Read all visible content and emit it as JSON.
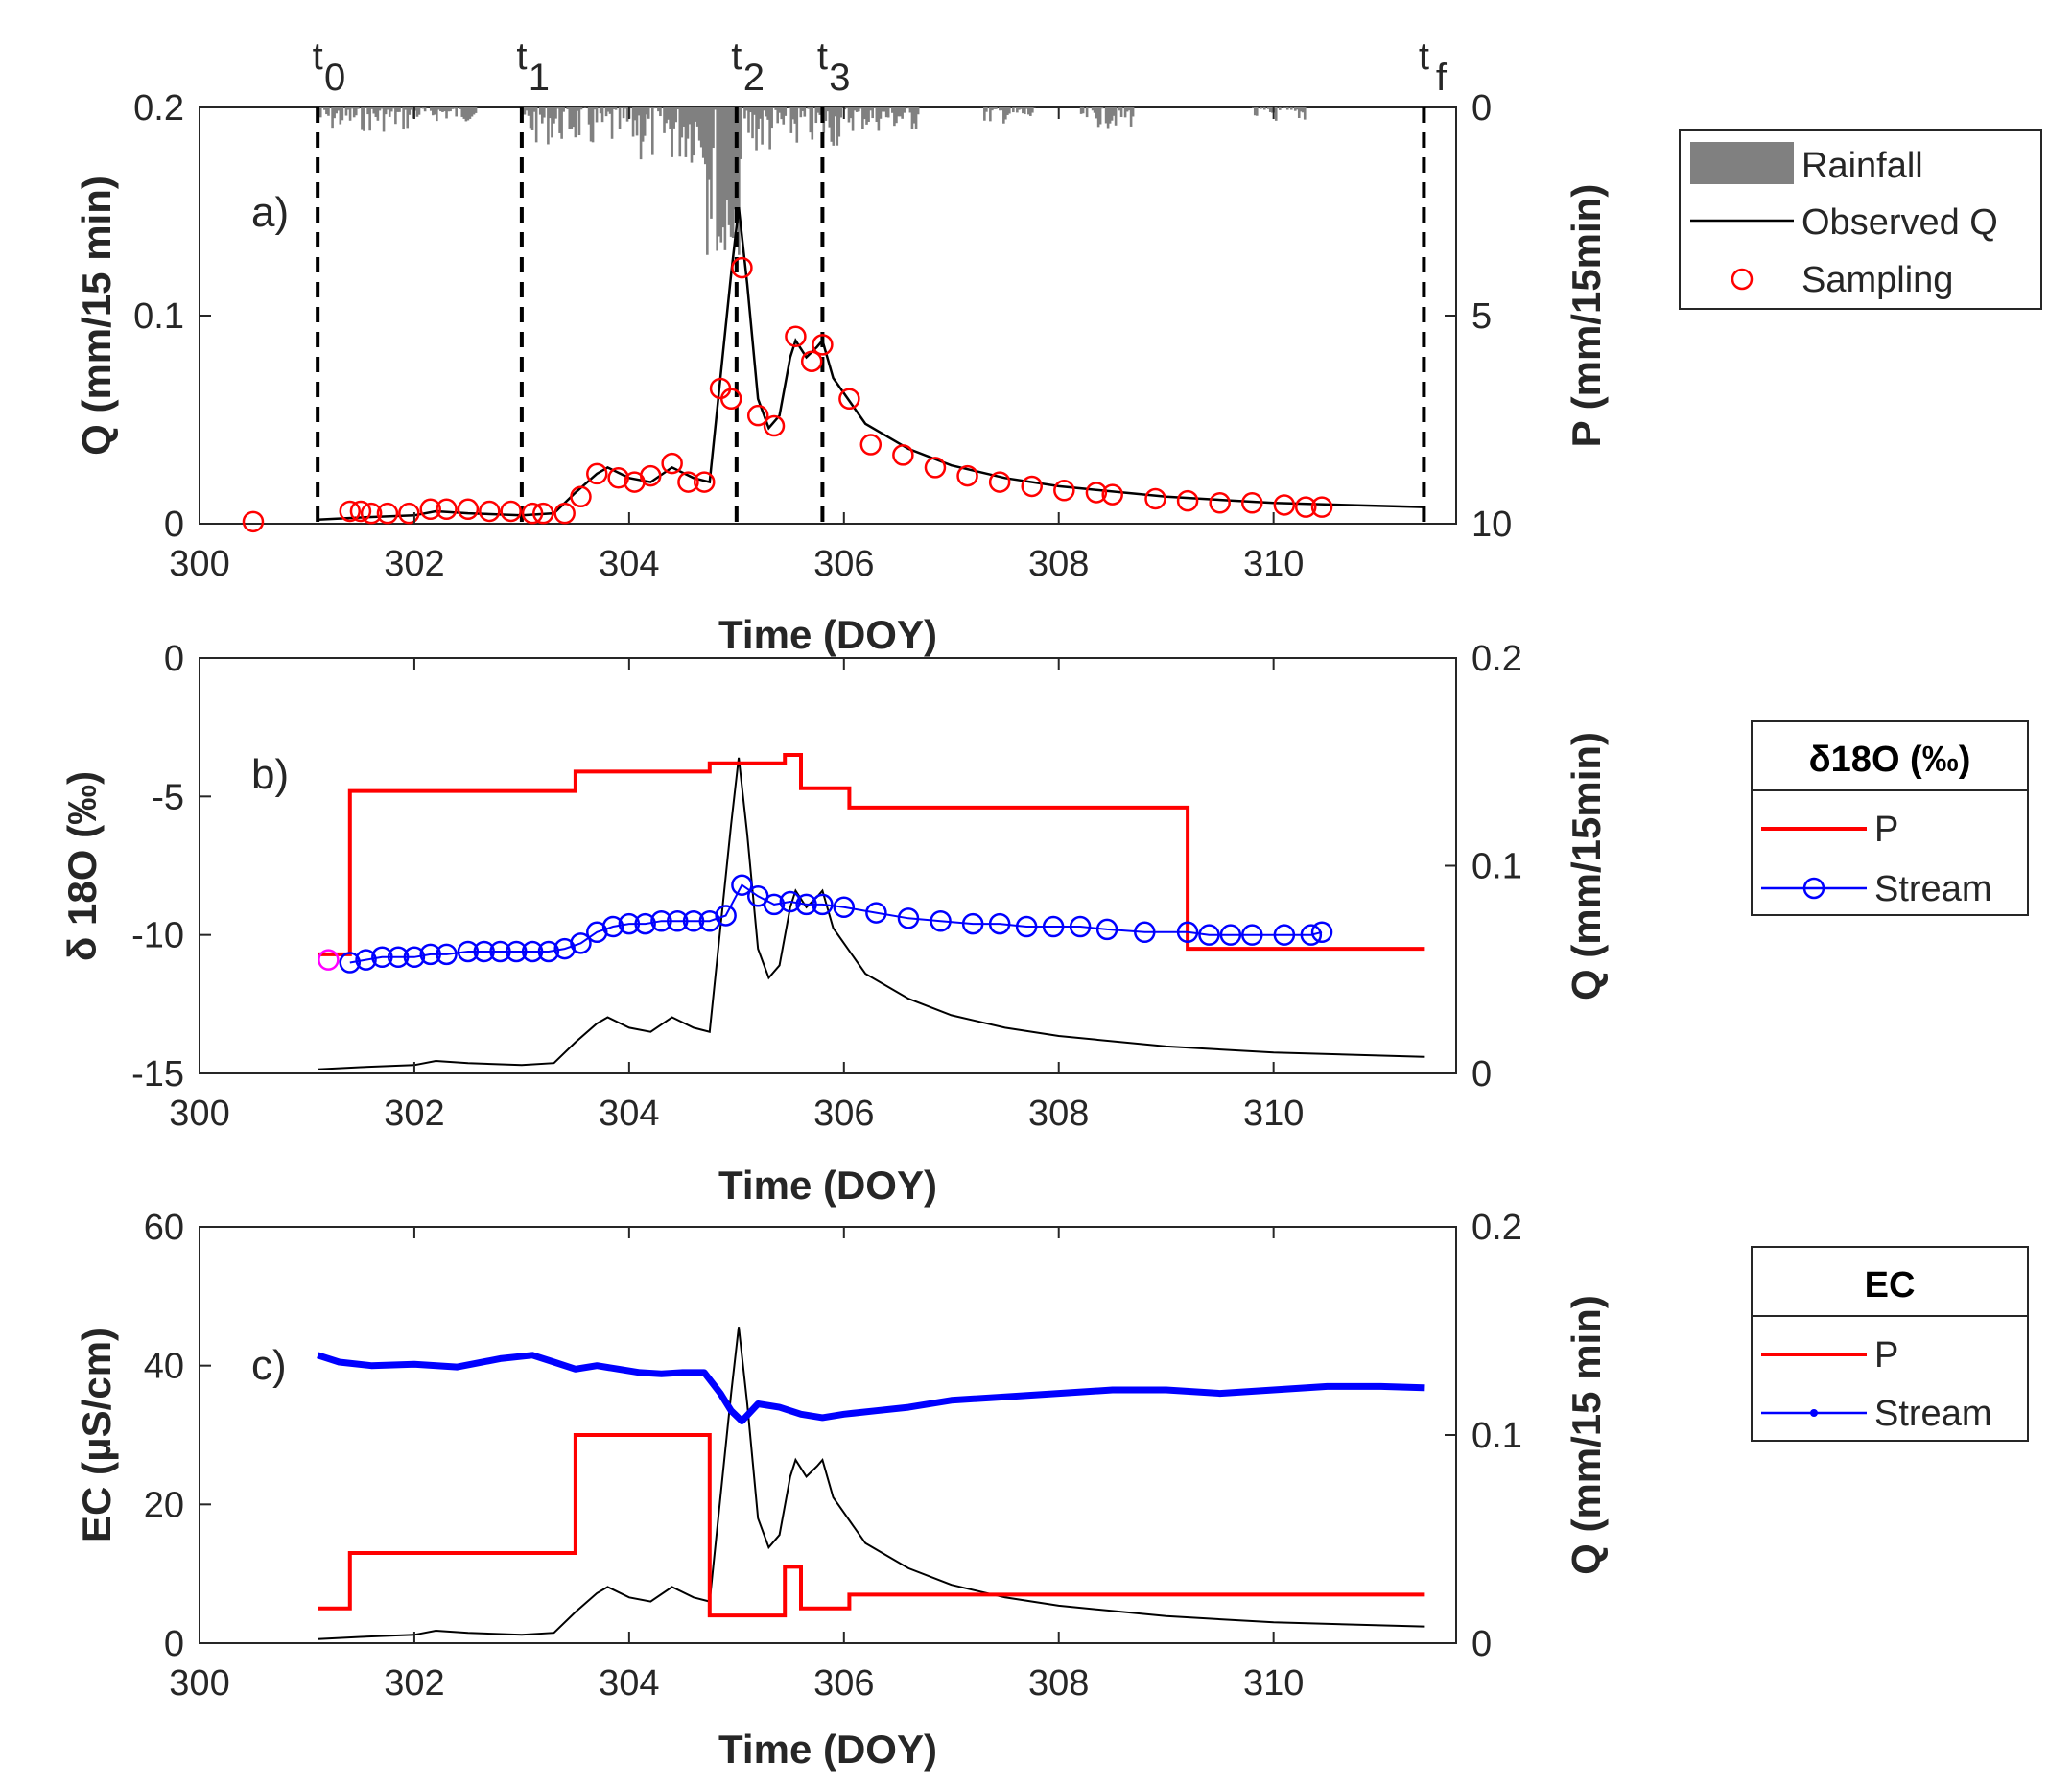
{
  "colors": {
    "rain": "#808080",
    "discharge": "#000000",
    "sampling": "#ff0000",
    "precip_line": "#ff0000",
    "stream_iso": "#0000ff",
    "stream_ec": "#0000ff",
    "first_sample": "#ff00ff"
  },
  "chart_data": [
    {
      "panel": "a)",
      "type": "line",
      "xlabel": "Time (DOY)",
      "ylabel": "Q (mm/15 min)",
      "ylabel_right": "P (mm/15min)",
      "xlim": [
        300,
        311.7
      ],
      "ylim": [
        0,
        0.2
      ],
      "ylim_right": [
        0,
        10
      ],
      "right_axis_reversed": true,
      "xticks": [
        "300",
        "302",
        "304",
        "306",
        "308",
        "310"
      ],
      "yticks": [
        "0",
        "0.1",
        "0.2"
      ],
      "yticks_right": [
        "0",
        "5",
        "10"
      ],
      "time_markers": [
        {
          "label": "t",
          "sub": "0",
          "x": 301.1
        },
        {
          "label": "t",
          "sub": "1",
          "x": 303.0
        },
        {
          "label": "t",
          "sub": "2",
          "x": 305.0
        },
        {
          "label": "t",
          "sub": "3",
          "x": 305.8
        },
        {
          "label": "t",
          "sub": "f",
          "x": 311.4
        }
      ],
      "legend": [
        {
          "label": "Rainfall",
          "kind": "patch"
        },
        {
          "label": "Observed Q",
          "kind": "line"
        },
        {
          "label": "Sampling",
          "kind": "marker"
        }
      ],
      "legend_location": "outside-right",
      "series": [
        {
          "name": "Observed Q",
          "x": [
            301.1,
            301.5,
            302.0,
            302.2,
            302.5,
            303.0,
            303.3,
            303.5,
            303.7,
            303.8,
            304.0,
            304.2,
            304.4,
            304.6,
            304.75,
            304.85,
            304.95,
            305.02,
            305.1,
            305.2,
            305.3,
            305.4,
            305.5,
            305.55,
            305.65,
            305.75,
            305.8,
            305.9,
            306.2,
            306.6,
            307.0,
            307.5,
            308.0,
            309.0,
            310.0,
            311.4
          ],
          "y": [
            0.002,
            0.003,
            0.004,
            0.006,
            0.005,
            0.004,
            0.005,
            0.015,
            0.024,
            0.027,
            0.022,
            0.02,
            0.027,
            0.022,
            0.02,
            0.07,
            0.12,
            0.152,
            0.115,
            0.06,
            0.046,
            0.052,
            0.08,
            0.088,
            0.08,
            0.085,
            0.088,
            0.07,
            0.048,
            0.036,
            0.028,
            0.022,
            0.018,
            0.013,
            0.01,
            0.008
          ]
        },
        {
          "name": "Sampling",
          "x": [
            300.5,
            301.4,
            301.5,
            301.6,
            301.75,
            301.95,
            302.15,
            302.3,
            302.5,
            302.7,
            302.9,
            303.1,
            303.2,
            303.4,
            303.55,
            303.7,
            303.9,
            304.05,
            304.2,
            304.4,
            304.55,
            304.7,
            304.85,
            304.95,
            305.05,
            305.2,
            305.35,
            305.55,
            305.7,
            305.8,
            306.05,
            306.25,
            306.55,
            306.85,
            307.15,
            307.45,
            307.75,
            308.05,
            308.35,
            308.5,
            308.9,
            309.2,
            309.5,
            309.8,
            310.1,
            310.3,
            310.45
          ],
          "y": [
            0.001,
            0.006,
            0.006,
            0.005,
            0.005,
            0.005,
            0.007,
            0.007,
            0.007,
            0.006,
            0.006,
            0.005,
            0.005,
            0.005,
            0.013,
            0.024,
            0.022,
            0.02,
            0.023,
            0.029,
            0.02,
            0.02,
            0.065,
            0.06,
            0.123,
            0.052,
            0.047,
            0.09,
            0.078,
            0.086,
            0.06,
            0.038,
            0.033,
            0.027,
            0.023,
            0.02,
            0.018,
            0.016,
            0.015,
            0.014,
            0.012,
            0.011,
            0.01,
            0.01,
            0.009,
            0.008,
            0.008
          ]
        },
        {
          "name": "Rainfall",
          "axis": "right",
          "events": [
            {
              "x0": 301.1,
              "x1": 302.0,
              "max": 0.6
            },
            {
              "x0": 302.0,
              "x1": 302.6,
              "max": 0.35
            },
            {
              "x0": 303.0,
              "x1": 303.6,
              "max": 0.9
            },
            {
              "x0": 303.6,
              "x1": 304.1,
              "max": 1.1
            },
            {
              "x0": 304.1,
              "x1": 304.7,
              "max": 1.4
            },
            {
              "x0": 304.7,
              "x1": 305.05,
              "max": 3.6
            },
            {
              "x0": 305.05,
              "x1": 305.5,
              "max": 1.2
            },
            {
              "x0": 305.5,
              "x1": 306.0,
              "max": 1.0
            },
            {
              "x0": 306.0,
              "x1": 306.7,
              "max": 0.6
            },
            {
              "x0": 307.3,
              "x1": 307.8,
              "max": 0.4
            },
            {
              "x0": 308.2,
              "x1": 308.7,
              "max": 0.5
            },
            {
              "x0": 309.8,
              "x1": 310.3,
              "max": 0.35
            }
          ]
        }
      ]
    },
    {
      "panel": "b)",
      "type": "line",
      "xlabel": "Time (DOY)",
      "ylabel": "δ 18O (‰)",
      "ylabel_right": "Q (mm/15min)",
      "xlim": [
        300,
        311.7
      ],
      "ylim": [
        -15,
        0
      ],
      "ylim_right": [
        0,
        0.2
      ],
      "xticks": [
        "300",
        "302",
        "304",
        "306",
        "308",
        "310"
      ],
      "yticks": [
        "-15",
        "-10",
        "-5",
        "0"
      ],
      "yticks_right": [
        "0",
        "0.1",
        "0.2"
      ],
      "legend_title": "δ18O (‰)",
      "legend": [
        {
          "label": "P",
          "kind": "line"
        },
        {
          "label": "Stream",
          "kind": "line-marker"
        }
      ],
      "series": [
        {
          "name": "P",
          "step_x": [
            301.1,
            301.4,
            303.5,
            304.75,
            305.45,
            305.6,
            306.05,
            309.2,
            311.4
          ],
          "step_y": [
            -10.7,
            -4.8,
            -4.1,
            -3.8,
            -3.5,
            -4.7,
            -5.4,
            -10.5,
            -10.5
          ]
        },
        {
          "name": "Stream",
          "x": [
            301.4,
            301.55,
            301.7,
            301.85,
            302.0,
            302.15,
            302.3,
            302.5,
            302.65,
            302.8,
            302.95,
            303.1,
            303.25,
            303.4,
            303.55,
            303.7,
            303.85,
            304.0,
            304.15,
            304.3,
            304.45,
            304.6,
            304.75,
            304.9,
            305.05,
            305.2,
            305.35,
            305.5,
            305.65,
            305.8,
            306.0,
            306.3,
            306.6,
            306.9,
            307.2,
            307.45,
            307.7,
            307.95,
            308.2,
            308.45,
            308.8,
            309.2,
            309.4,
            309.6,
            309.8,
            310.1,
            310.35,
            310.45
          ],
          "y": [
            -11.0,
            -10.9,
            -10.8,
            -10.8,
            -10.8,
            -10.7,
            -10.7,
            -10.6,
            -10.6,
            -10.6,
            -10.6,
            -10.6,
            -10.6,
            -10.5,
            -10.3,
            -9.9,
            -9.7,
            -9.6,
            -9.6,
            -9.5,
            -9.5,
            -9.5,
            -9.5,
            -9.3,
            -8.2,
            -8.6,
            -8.9,
            -8.8,
            -8.9,
            -8.9,
            -9.0,
            -9.2,
            -9.4,
            -9.5,
            -9.6,
            -9.6,
            -9.7,
            -9.7,
            -9.7,
            -9.8,
            -9.9,
            -9.9,
            -10.0,
            -10.0,
            -10.0,
            -10.0,
            -10.0,
            -9.9
          ]
        },
        {
          "name": "First sample",
          "x": [
            301.2
          ],
          "y": [
            -10.9
          ]
        },
        {
          "name": "Q",
          "axis": "right",
          "x": [
            301.1,
            301.5,
            302.0,
            302.2,
            302.5,
            303.0,
            303.3,
            303.5,
            303.7,
            303.8,
            304.0,
            304.2,
            304.4,
            304.6,
            304.75,
            304.85,
            304.95,
            305.02,
            305.1,
            305.2,
            305.3,
            305.4,
            305.5,
            305.55,
            305.65,
            305.75,
            305.8,
            305.9,
            306.2,
            306.6,
            307.0,
            307.5,
            308.0,
            309.0,
            310.0,
            311.4
          ],
          "y": [
            0.002,
            0.003,
            0.004,
            0.006,
            0.005,
            0.004,
            0.005,
            0.015,
            0.024,
            0.027,
            0.022,
            0.02,
            0.027,
            0.022,
            0.02,
            0.07,
            0.12,
            0.152,
            0.115,
            0.06,
            0.046,
            0.052,
            0.08,
            0.088,
            0.08,
            0.085,
            0.088,
            0.07,
            0.048,
            0.036,
            0.028,
            0.022,
            0.018,
            0.013,
            0.01,
            0.008
          ]
        }
      ]
    },
    {
      "panel": "c)",
      "type": "line",
      "xlabel": "Time (DOY)",
      "ylabel": "EC (μS/cm)",
      "ylabel_right": "Q (mm/15 min)",
      "xlim": [
        300,
        311.7
      ],
      "ylim": [
        0,
        60
      ],
      "ylim_right": [
        0,
        0.2
      ],
      "xticks": [
        "300",
        "302",
        "304",
        "306",
        "308",
        "310"
      ],
      "yticks": [
        "0",
        "20",
        "40",
        "60"
      ],
      "yticks_right": [
        "0",
        "0.1",
        "0.2"
      ],
      "legend_title": "EC",
      "legend": [
        {
          "label": "P",
          "kind": "line"
        },
        {
          "label": "Stream",
          "kind": "line-dot"
        }
      ],
      "series": [
        {
          "name": "P",
          "step_x": [
            301.1,
            301.4,
            303.5,
            304.75,
            305.45,
            305.6,
            306.05,
            311.4
          ],
          "step_y": [
            5.0,
            13.0,
            30.0,
            4.0,
            11.0,
            5.0,
            7.0,
            7.0
          ]
        },
        {
          "name": "Stream",
          "x": [
            301.1,
            301.3,
            301.6,
            302.0,
            302.4,
            302.8,
            303.1,
            303.3,
            303.5,
            303.7,
            303.9,
            304.1,
            304.3,
            304.5,
            304.7,
            304.85,
            304.95,
            305.05,
            305.2,
            305.4,
            305.6,
            305.8,
            306.0,
            306.3,
            306.6,
            307.0,
            307.5,
            308.0,
            308.5,
            309.0,
            309.5,
            310.0,
            310.5,
            311.0,
            311.4
          ],
          "y": [
            41.5,
            40.5,
            40.0,
            40.2,
            39.8,
            41.0,
            41.5,
            40.5,
            39.5,
            40.0,
            39.5,
            39.0,
            38.8,
            39.0,
            39.0,
            36.0,
            33.5,
            32.0,
            34.5,
            34.0,
            33.0,
            32.5,
            33.0,
            33.5,
            34.0,
            35.0,
            35.5,
            36.0,
            36.5,
            36.5,
            36.0,
            36.5,
            37.0,
            37.0,
            36.8
          ]
        },
        {
          "name": "Q",
          "axis": "right",
          "x": [
            301.1,
            301.5,
            302.0,
            302.2,
            302.5,
            303.0,
            303.3,
            303.5,
            303.7,
            303.8,
            304.0,
            304.2,
            304.4,
            304.6,
            304.75,
            304.85,
            304.95,
            305.02,
            305.1,
            305.2,
            305.3,
            305.4,
            305.5,
            305.55,
            305.65,
            305.75,
            305.8,
            305.9,
            306.2,
            306.6,
            307.0,
            307.5,
            308.0,
            309.0,
            310.0,
            311.4
          ],
          "y": [
            0.002,
            0.003,
            0.004,
            0.006,
            0.005,
            0.004,
            0.005,
            0.015,
            0.024,
            0.027,
            0.022,
            0.02,
            0.027,
            0.022,
            0.02,
            0.07,
            0.12,
            0.152,
            0.115,
            0.06,
            0.046,
            0.052,
            0.08,
            0.088,
            0.08,
            0.085,
            0.088,
            0.07,
            0.048,
            0.036,
            0.028,
            0.022,
            0.018,
            0.013,
            0.01,
            0.008
          ]
        }
      ]
    }
  ]
}
